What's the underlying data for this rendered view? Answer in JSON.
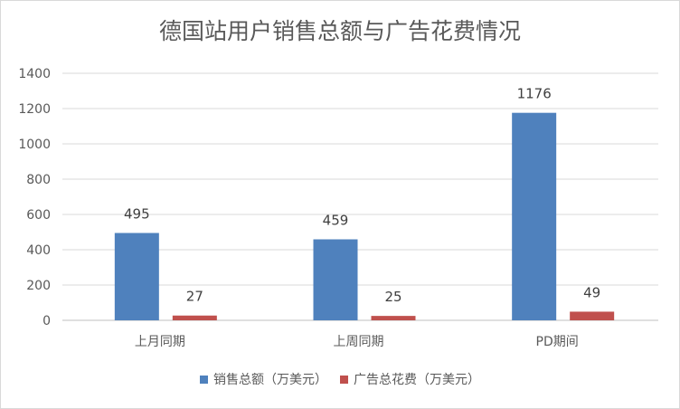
{
  "chart_data": {
    "type": "bar",
    "title": "德国站用户销售总额与广告花费情况",
    "categories": [
      "上月同期",
      "上周同期",
      "PD期间"
    ],
    "series": [
      {
        "name": "销售总额（万美元）",
        "values": [
          495,
          459,
          1176
        ],
        "color": "#4f81bd"
      },
      {
        "name": "广告总花费（万美元）",
        "values": [
          27,
          25,
          49
        ],
        "color": "#c0504d"
      }
    ],
    "ylim": [
      0,
      1400
    ],
    "yticks": [
      0,
      200,
      400,
      600,
      800,
      1000,
      1200,
      1400
    ],
    "grid": true,
    "legend_position": "bottom",
    "xlabel": "",
    "ylabel": ""
  }
}
